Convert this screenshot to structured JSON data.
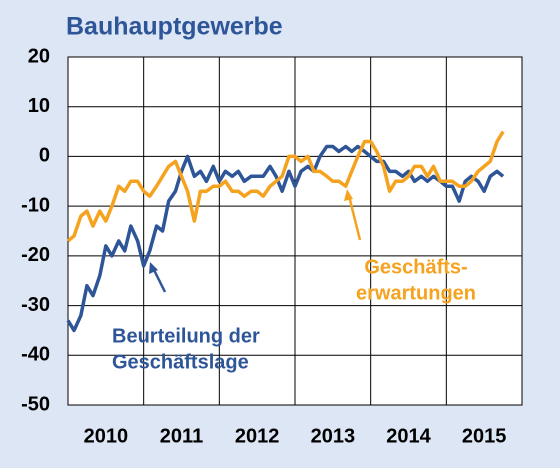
{
  "chart_data": {
    "type": "line",
    "title": "Bauhauptgewerbe",
    "x": [
      2010,
      2010.08,
      2010.17,
      2010.25,
      2010.33,
      2010.42,
      2010.5,
      2010.58,
      2010.67,
      2010.75,
      2010.83,
      2010.92,
      2011,
      2011.08,
      2011.17,
      2011.25,
      2011.33,
      2011.42,
      2011.5,
      2011.58,
      2011.67,
      2011.75,
      2011.83,
      2011.92,
      2012,
      2012.08,
      2012.17,
      2012.25,
      2012.33,
      2012.42,
      2012.5,
      2012.58,
      2012.67,
      2012.75,
      2012.83,
      2012.92,
      2013,
      2013.08,
      2013.17,
      2013.25,
      2013.33,
      2013.42,
      2013.5,
      2013.58,
      2013.67,
      2013.75,
      2013.83,
      2013.92,
      2014,
      2014.08,
      2014.17,
      2014.25,
      2014.33,
      2014.42,
      2014.5,
      2014.58,
      2014.67,
      2014.75,
      2014.83,
      2014.92,
      2015,
      2015.08,
      2015.17,
      2015.25,
      2015.33,
      2015.42,
      2015.5,
      2015.58,
      2015.67,
      2015.75
    ],
    "series": [
      {
        "name": "Beurteilung der Geschäftslage",
        "color": "#2e5597",
        "values": [
          -33,
          -35,
          -32,
          -26,
          -28,
          -24,
          -18,
          -20,
          -17,
          -19,
          -14,
          -17,
          -22,
          -19,
          -14,
          -15,
          -9,
          -7,
          -3,
          0,
          -4,
          -3,
          -5,
          -2,
          -5,
          -3,
          -4,
          -3,
          -5,
          -4,
          -4,
          -4,
          -2,
          -4,
          -7,
          -3,
          -6,
          -3,
          -2,
          -3,
          0,
          2,
          2,
          1,
          2,
          1,
          2,
          1,
          0,
          -1,
          -1,
          -3,
          -3,
          -4,
          -3,
          -5,
          -4,
          -5,
          -4,
          -5,
          -6,
          -6,
          -9,
          -5,
          -4,
          -5,
          -7,
          -4,
          -3,
          -4
        ]
      },
      {
        "name": "Geschäftserwartungen",
        "color": "#f5a21e",
        "values": [
          -17,
          -16,
          -12,
          -11,
          -14,
          -11,
          -13,
          -10,
          -6,
          -7,
          -5,
          -5,
          -7,
          -8,
          -6,
          -4,
          -2,
          -1,
          -4,
          -7,
          -13,
          -7,
          -7,
          -6,
          -6,
          -5,
          -7,
          -7,
          -8,
          -7,
          -7,
          -8,
          -6,
          -5,
          -4,
          0,
          0,
          -1,
          0,
          -3,
          -3,
          -4,
          -5,
          -5,
          -6,
          -3,
          0,
          3,
          3,
          1,
          -2,
          -7,
          -5,
          -5,
          -4,
          -2,
          -2,
          -4,
          -2,
          -5,
          -5,
          -5,
          -6,
          -6,
          -5,
          -3,
          -2,
          -1,
          3,
          5
        ]
      }
    ],
    "annotations": [
      {
        "lines": [
          "Beurteilung der",
          "Geschäftslage"
        ]
      },
      {
        "lines": [
          "Geschäfts-",
          "erwartungen"
        ]
      }
    ],
    "xlim": [
      2010,
      2016
    ],
    "xticks": [
      {
        "value": 2010.5,
        "label": "2010"
      },
      {
        "value": 2011.5,
        "label": "2011"
      },
      {
        "value": 2012.5,
        "label": "2012"
      },
      {
        "value": 2013.5,
        "label": "2013"
      },
      {
        "value": 2014.5,
        "label": "2014"
      },
      {
        "value": 2015.5,
        "label": "2015"
      }
    ],
    "xgrid": [
      2011,
      2012,
      2013,
      2014,
      2015
    ],
    "ylim": [
      -50,
      20
    ],
    "yticks": [
      -50,
      -40,
      -30,
      -20,
      -10,
      0,
      10,
      20
    ],
    "grid": true
  }
}
